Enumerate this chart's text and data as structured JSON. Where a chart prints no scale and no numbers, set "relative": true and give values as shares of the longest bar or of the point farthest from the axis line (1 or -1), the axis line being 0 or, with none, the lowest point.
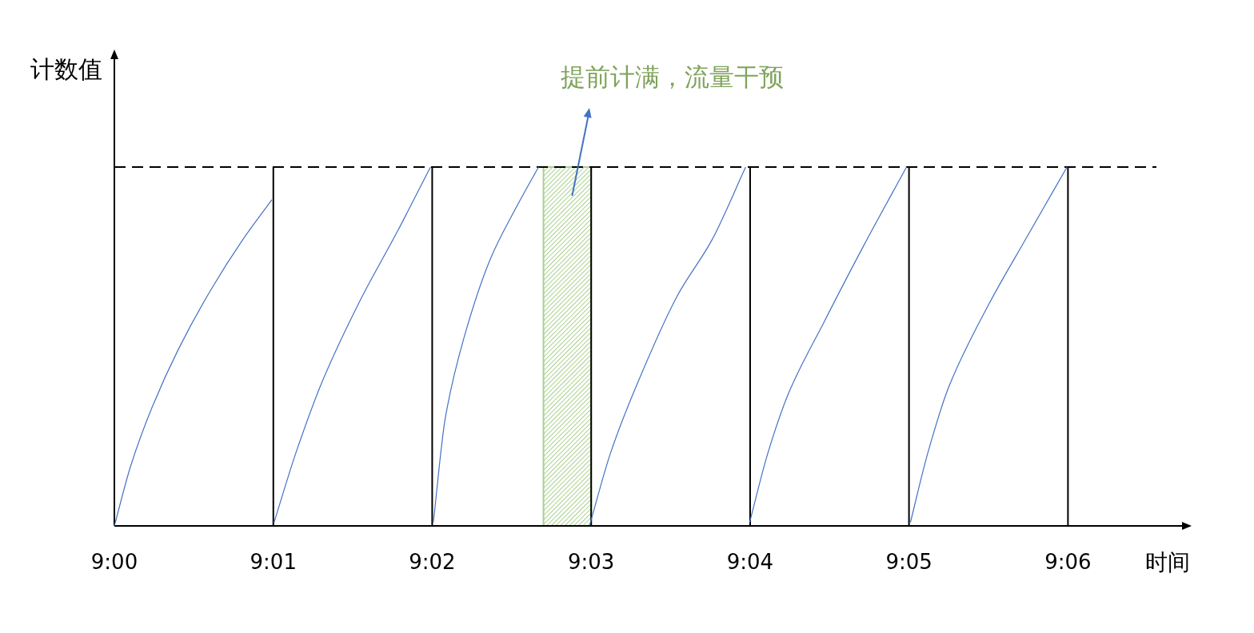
{
  "chart_data": {
    "type": "line",
    "relative": true,
    "xlabel": "时间",
    "ylabel": "计数值",
    "xlim": [
      9,
      9.1128
    ],
    "xticks": [
      {
        "value": 9,
        "label": "9:00"
      },
      {
        "value": 9.01667,
        "label": "9:01"
      },
      {
        "value": 9.03333,
        "label": "9:02"
      },
      {
        "value": 9.05,
        "label": "9:03"
      },
      {
        "value": 9.06667,
        "label": "9:04"
      },
      {
        "value": 9.08333,
        "label": "9:05"
      },
      {
        "value": 9.1,
        "label": "9:06"
      }
    ],
    "series": [
      {
        "color": "#4472c4",
        "x": [
          9,
          9.0017,
          9.00395,
          9.00673,
          9.01008,
          9.01345,
          9.01652
        ],
        "values": [
          0,
          0.166,
          0.33,
          0.493,
          0.656,
          0.797,
          0.909
        ]
      },
      {
        "color": "#4472c4",
        "x": [
          9.01675,
          9.01903,
          9.02183,
          9.02575,
          9.02967,
          9.03315
        ],
        "values": [
          0.01,
          0.203,
          0.404,
          0.627,
          0.82,
          1.0
        ]
      },
      {
        "color": "#4472c4",
        "x": [
          9.03345,
          9.0347,
          9.03665,
          9.03945,
          9.04197,
          9.04448
        ],
        "values": [
          0.01,
          0.3,
          0.523,
          0.745,
          0.879,
          1.0
        ]
      },
      {
        "color": "#4472c4",
        "x": [
          9.04985,
          9.05203,
          9.05483,
          9.05903,
          9.06267,
          9.0662
        ],
        "values": [
          0.003,
          0.203,
          0.396,
          0.641,
          0.797,
          1.0
        ]
      },
      {
        "color": "#4472c4",
        "x": [
          9.06662,
          9.06853,
          9.07077,
          9.0744,
          9.0786,
          9.08307
        ],
        "values": [
          0.01,
          0.203,
          0.374,
          0.567,
          0.782,
          1.0
        ]
      },
      {
        "color": "#4472c4",
        "x": [
          9.08348,
          9.0853,
          9.08753,
          9.09173,
          9.09537,
          9.0999
        ],
        "values": [
          0.01,
          0.203,
          0.389,
          0.619,
          0.79,
          1.0
        ]
      }
    ],
    "ref_lines": [
      {
        "axis": "y",
        "value": 1,
        "color": "#000000",
        "line_style": "dashed"
      },
      {
        "axis": "x",
        "value": 9.01667,
        "color": "#000000"
      },
      {
        "axis": "x",
        "value": 9.03333,
        "color": "#000000"
      },
      {
        "axis": "x",
        "value": 9.05,
        "color": "#000000"
      },
      {
        "axis": "x",
        "value": 9.06667,
        "color": "#000000"
      },
      {
        "axis": "x",
        "value": 9.08333,
        "color": "#000000"
      },
      {
        "axis": "x",
        "value": 9.1,
        "color": "#000000"
      }
    ],
    "bands": [
      {
        "axis": "x",
        "from": 9.045,
        "to": 9.05,
        "color": "#a9d18e"
      }
    ],
    "annotations": [
      "提前计满，流量干预"
    ]
  }
}
